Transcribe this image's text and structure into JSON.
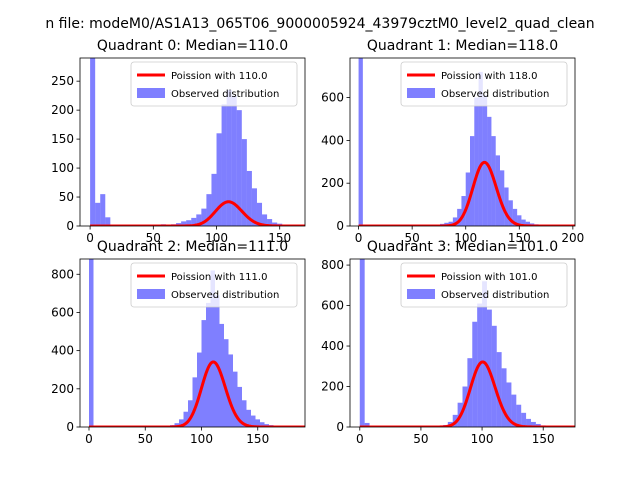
{
  "figure": {
    "suptitle": "n file: modeM0/AS1A13_065T06_9000005924_43979cztM0_level2_quad_clean"
  },
  "chart_data": [
    {
      "type": "bar",
      "title": "Quadrant 0: Median=110.0",
      "xlim": [
        -8,
        170
      ],
      "ylim": [
        0,
        290
      ],
      "xticks": [
        0,
        50,
        100,
        150
      ],
      "yticks": [
        0,
        50,
        100,
        150,
        200,
        250
      ],
      "bin_width": 4,
      "bins_x": [
        0,
        4,
        8,
        12,
        56,
        60,
        64,
        68,
        72,
        76,
        80,
        84,
        88,
        92,
        96,
        100,
        104,
        108,
        112,
        116,
        120,
        124,
        128,
        132,
        136,
        140,
        144,
        148,
        152,
        156,
        160,
        164
      ],
      "bins_y": [
        290,
        40,
        55,
        15,
        3,
        2,
        3,
        5,
        8,
        10,
        14,
        20,
        30,
        55,
        90,
        160,
        210,
        235,
        225,
        200,
        150,
        95,
        65,
        40,
        20,
        12,
        6,
        4,
        2,
        1,
        1,
        1
      ],
      "poisson_mean": 110.0,
      "poisson_scale": 1100,
      "legend": {
        "line": "Poission with 110.0",
        "bars": "Observed distribution",
        "position": "upper right"
      }
    },
    {
      "type": "bar",
      "title": "Quadrant 1: Median=118.0",
      "xlim": [
        -8,
        202
      ],
      "ylim": [
        0,
        785
      ],
      "xticks": [
        0,
        50,
        100,
        150,
        200
      ],
      "yticks": [
        0,
        200,
        400,
        600
      ],
      "bin_width": 4,
      "bins_x": [
        0,
        76,
        80,
        84,
        88,
        92,
        96,
        100,
        104,
        108,
        112,
        116,
        120,
        124,
        128,
        132,
        136,
        140,
        144,
        148,
        152,
        156,
        160,
        164,
        168,
        172,
        176,
        180,
        184,
        188,
        192
      ],
      "bins_y": [
        785,
        10,
        15,
        20,
        40,
        80,
        140,
        250,
        420,
        600,
        720,
        610,
        510,
        420,
        330,
        260,
        180,
        120,
        80,
        50,
        30,
        20,
        12,
        8,
        5,
        3,
        2,
        1,
        1,
        1,
        1
      ],
      "poisson_mean": 118.0,
      "poisson_scale": 8100,
      "legend": {
        "line": "Poission with 118.0",
        "bars": "Observed distribution",
        "position": "upper right"
      }
    },
    {
      "type": "bar",
      "title": "Quadrant 2: Median=111.0",
      "xlim": [
        -8,
        192
      ],
      "ylim": [
        0,
        880
      ],
      "xticks": [
        0,
        50,
        100,
        150
      ],
      "yticks": [
        0,
        200,
        400,
        600,
        800
      ],
      "bin_width": 4,
      "bins_x": [
        0,
        72,
        76,
        80,
        84,
        88,
        92,
        96,
        100,
        104,
        108,
        112,
        116,
        120,
        124,
        128,
        132,
        136,
        140,
        144,
        148,
        152,
        156,
        160,
        164,
        168,
        172,
        176,
        180,
        184
      ],
      "bins_y": [
        880,
        10,
        20,
        40,
        80,
        140,
        260,
        390,
        560,
        650,
        820,
        690,
        540,
        460,
        380,
        290,
        210,
        140,
        90,
        60,
        40,
        25,
        15,
        10,
        6,
        4,
        3,
        2,
        1,
        1
      ],
      "poisson_mean": 111.0,
      "poisson_scale": 9000,
      "legend": {
        "line": "Poission with 111.0",
        "bars": "Observed distribution",
        "position": "upper right"
      }
    },
    {
      "type": "bar",
      "title": "Quadrant 3: Median=101.0",
      "xlim": [
        -8,
        176
      ],
      "ylim": [
        0,
        830
      ],
      "xticks": [
        0,
        50,
        100,
        150
      ],
      "yticks": [
        0,
        200,
        400,
        600,
        800
      ],
      "bin_width": 4,
      "bins_x": [
        0,
        4,
        68,
        72,
        76,
        80,
        84,
        88,
        92,
        96,
        100,
        104,
        108,
        112,
        116,
        120,
        124,
        128,
        132,
        136,
        140,
        144,
        148,
        152,
        156,
        160,
        164
      ],
      "bins_y": [
        830,
        20,
        10,
        25,
        60,
        120,
        200,
        340,
        520,
        610,
        720,
        580,
        500,
        370,
        290,
        220,
        160,
        110,
        70,
        40,
        25,
        15,
        8,
        5,
        3,
        2,
        1
      ],
      "poisson_mean": 101.0,
      "poisson_scale": 8100,
      "legend": {
        "line": "Poission with 101.0",
        "bars": "Observed distribution",
        "position": "upper right"
      }
    }
  ]
}
